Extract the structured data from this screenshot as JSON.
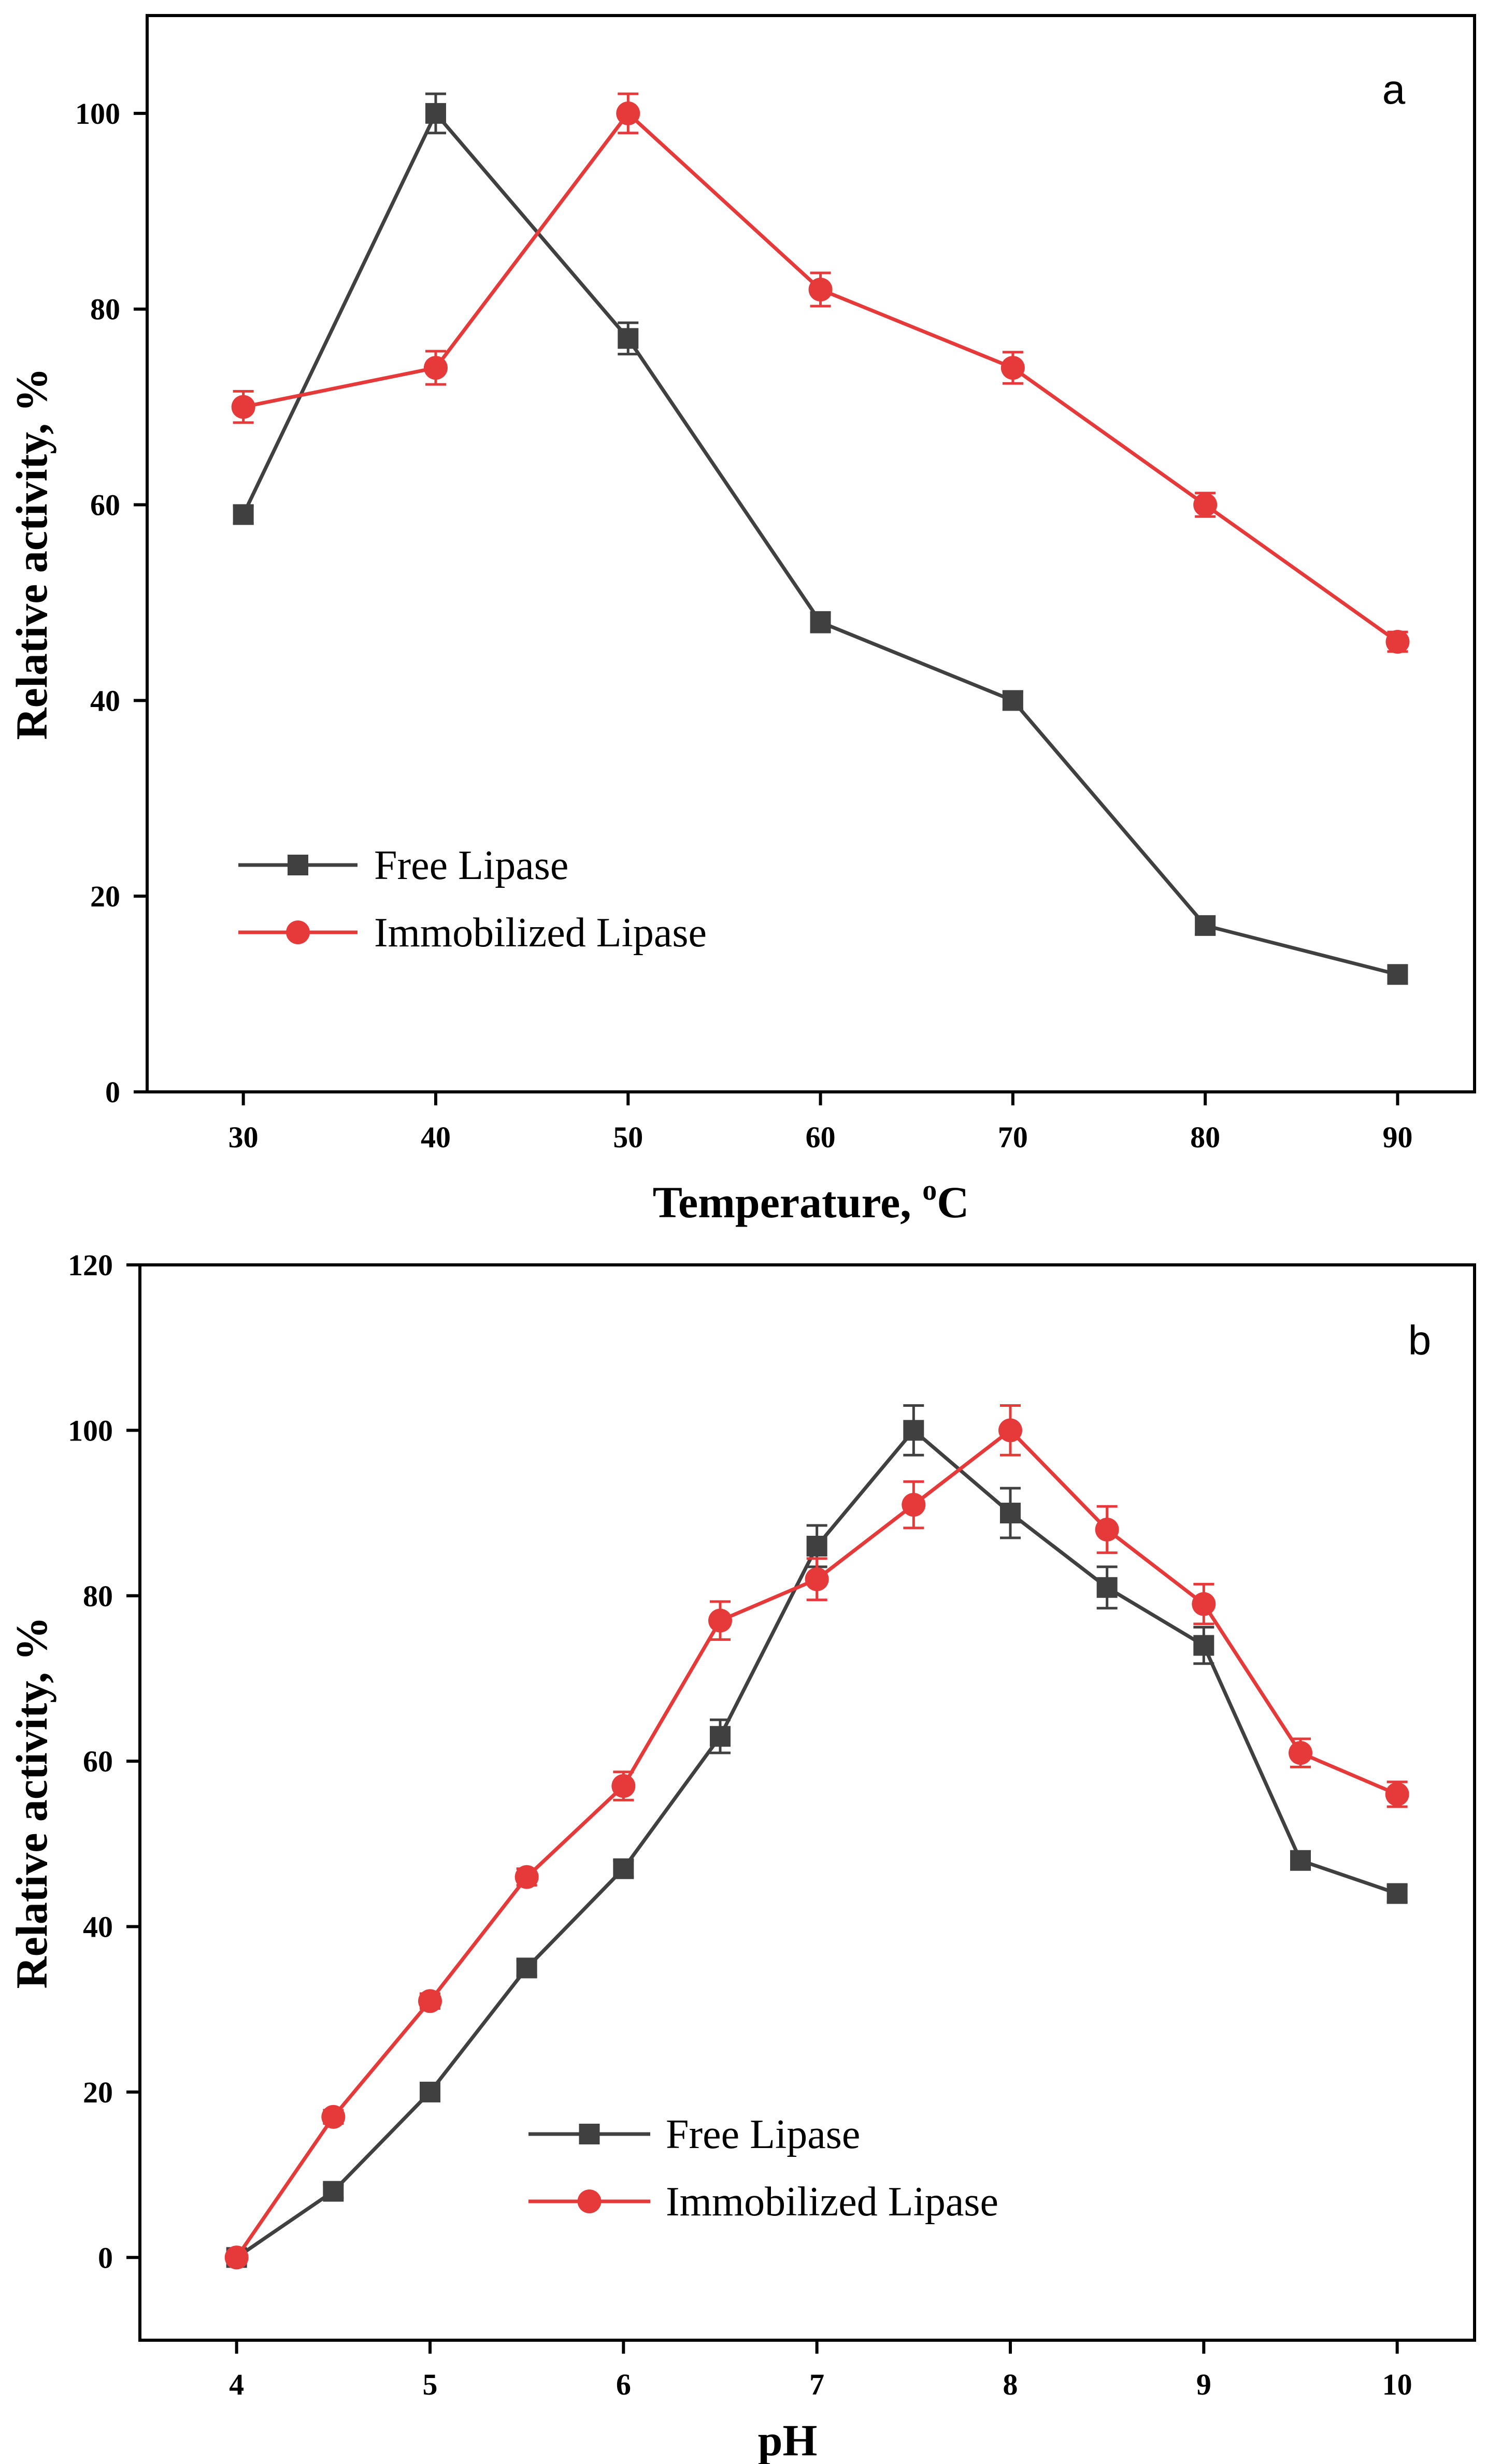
{
  "chart_data": [
    {
      "type": "line",
      "panel_label": "a",
      "xlabel_main": "Temperature, ",
      "xlabel_sup": "o",
      "xlabel_end": "C",
      "ylabel": "Relative activity, %",
      "xlim": [
        25,
        94
      ],
      "ylim": [
        0,
        110
      ],
      "xticks": [
        30,
        40,
        50,
        60,
        70,
        80,
        90
      ],
      "yticks": [
        0,
        20,
        40,
        60,
        80,
        100
      ],
      "x": [
        30,
        40,
        50,
        60,
        70,
        80,
        90
      ],
      "series": [
        {
          "name": "Free Lipase",
          "color": "#404040",
          "marker": "square",
          "values": [
            59,
            100,
            77,
            48,
            40,
            17,
            12
          ],
          "errors": [
            0.9,
            2.0,
            1.6,
            1.0,
            0.9,
            0.9,
            0.9
          ]
        },
        {
          "name": "Immobilized Lipase",
          "color": "#e63a3a",
          "marker": "circle",
          "values": [
            70,
            74,
            100,
            82,
            74,
            60,
            46
          ],
          "errors": [
            1.6,
            1.7,
            2.0,
            1.7,
            1.6,
            1.2,
            1.0
          ]
        }
      ]
    },
    {
      "type": "line",
      "panel_label": "b",
      "xlabel_main": "pH",
      "xlabel_sup": "",
      "xlabel_end": "",
      "ylabel": "Relative activity, %",
      "xlim": [
        3.5,
        10.4
      ],
      "ylim": [
        -10,
        120
      ],
      "xticks": [
        4,
        5,
        6,
        7,
        8,
        9,
        10
      ],
      "yticks": [
        0,
        20,
        40,
        60,
        80,
        100,
        120
      ],
      "x": [
        4,
        4.5,
        5,
        5.5,
        6,
        6.5,
        7,
        7.5,
        8,
        8.5,
        9,
        9.5,
        10
      ],
      "series": [
        {
          "name": "Free Lipase",
          "color": "#404040",
          "marker": "square",
          "values": [
            0,
            8,
            20,
            35,
            47,
            63,
            86,
            100,
            90,
            81,
            74,
            48,
            44
          ],
          "errors": [
            0.5,
            0.8,
            0.8,
            0.9,
            1.0,
            2.0,
            2.5,
            3.0,
            3.0,
            2.5,
            2.2,
            1.0,
            1.0
          ]
        },
        {
          "name": "Immobilized Lipase",
          "color": "#e63a3a",
          "marker": "circle",
          "values": [
            0,
            17,
            31,
            46,
            57,
            77,
            82,
            91,
            100,
            88,
            79,
            61,
            56
          ],
          "errors": [
            0.5,
            0.8,
            0.9,
            1.0,
            1.7,
            2.3,
            2.5,
            2.8,
            3.0,
            2.8,
            2.4,
            1.7,
            1.5
          ]
        }
      ]
    }
  ]
}
